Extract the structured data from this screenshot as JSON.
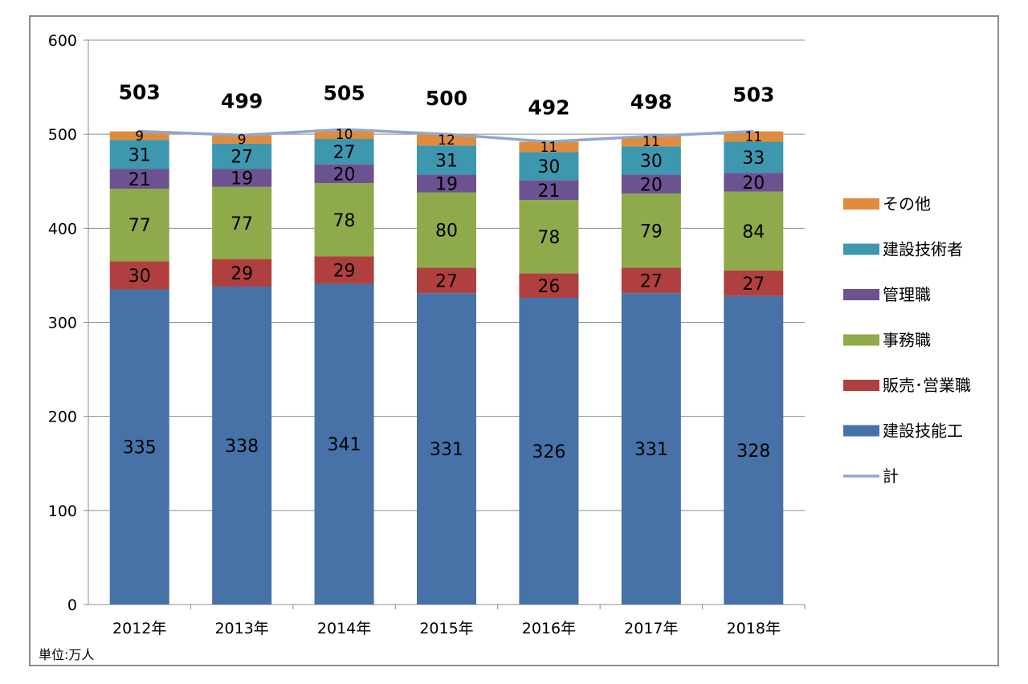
{
  "chart_data": {
    "type": "bar",
    "stacked": true,
    "categories": [
      "2012年",
      "2013年",
      "2014年",
      "2015年",
      "2016年",
      "2017年",
      "2018年"
    ],
    "series": [
      {
        "name": "建設技能工",
        "color": "#4672a8",
        "values": [
          335,
          338,
          341,
          331,
          326,
          331,
          328
        ]
      },
      {
        "name": "販売･営業職",
        "color": "#b0403f",
        "values": [
          30,
          29,
          29,
          27,
          26,
          27,
          27
        ]
      },
      {
        "name": "事務職",
        "color": "#8eaa4a",
        "values": [
          77,
          77,
          78,
          80,
          78,
          79,
          84
        ]
      },
      {
        "name": "管理職",
        "color": "#6d5292",
        "values": [
          21,
          19,
          20,
          19,
          21,
          20,
          20
        ]
      },
      {
        "name": "建設技術者",
        "color": "#3d97af",
        "values": [
          31,
          27,
          27,
          31,
          30,
          30,
          33
        ]
      },
      {
        "name": "その他",
        "color": "#e08b3e",
        "values": [
          9,
          9,
          10,
          12,
          11,
          11,
          11
        ]
      }
    ],
    "total_series": {
      "name": "計",
      "color": "#8fa8cc",
      "values": [
        503,
        499,
        505,
        500,
        492,
        498,
        503
      ]
    },
    "legend_order": [
      "その他",
      "建設技術者",
      "管理職",
      "事務職",
      "販売･営業職",
      "建設技能工",
      "計"
    ],
    "legend_position": "right",
    "yticks": [
      0,
      100,
      200,
      300,
      400,
      500,
      600
    ],
    "ylim": [
      0,
      600
    ],
    "grid": true,
    "unit_label": "単位:万人",
    "title": "",
    "xlabel": "",
    "ylabel": ""
  }
}
